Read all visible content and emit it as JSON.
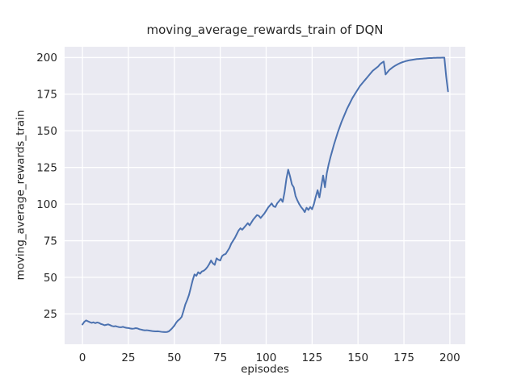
{
  "chart_data": {
    "type": "line",
    "title": "moving_average_rewards_train of DQN",
    "xlabel": "episodes",
    "ylabel": "moving_average_rewards_train",
    "x_ticks": [
      0,
      25,
      50,
      75,
      100,
      125,
      150,
      175,
      200
    ],
    "y_ticks": [
      25,
      50,
      75,
      100,
      125,
      150,
      175,
      200
    ],
    "xlim": [
      -9.7,
      208.4
    ],
    "ylim": [
      4.3,
      207.4
    ],
    "grid": true,
    "legend": false,
    "series": [
      {
        "name": "moving_average_rewards_train",
        "x_start": 0,
        "x_step": 1,
        "values": [
          17.8,
          19.6,
          20.6,
          20.0,
          19.4,
          18.9,
          19.3,
          18.7,
          19.2,
          18.9,
          18.2,
          17.8,
          17.3,
          17.6,
          17.9,
          17.4,
          16.8,
          16.5,
          16.7,
          16.3,
          16.0,
          15.9,
          16.2,
          15.8,
          15.5,
          15.4,
          15.1,
          14.9,
          15.0,
          15.3,
          15.1,
          14.6,
          14.3,
          14.0,
          13.8,
          13.9,
          13.7,
          13.5,
          13.3,
          13.2,
          13.1,
          13.2,
          13.0,
          12.8,
          12.7,
          12.6,
          12.7,
          13.1,
          14.2,
          15.5,
          17.0,
          19.0,
          20.5,
          21.5,
          23.0,
          27.0,
          31.5,
          34.5,
          38.0,
          43.0,
          48.0,
          52.0,
          51.0,
          53.5,
          52.5,
          54.0,
          54.5,
          55.5,
          57.0,
          59.0,
          61.5,
          59.5,
          58.5,
          63.0,
          62.0,
          61.5,
          64.5,
          65.5,
          66.0,
          68.0,
          70.0,
          73.0,
          75.0,
          77.0,
          79.5,
          82.0,
          83.5,
          82.5,
          84.0,
          85.5,
          87.0,
          85.5,
          87.5,
          89.5,
          91.0,
          92.5,
          92.0,
          90.5,
          92.0,
          93.5,
          95.5,
          97.5,
          99.0,
          100.5,
          98.5,
          98.0,
          100.5,
          102.0,
          103.5,
          101.5,
          108.0,
          117.0,
          123.5,
          119.0,
          113.5,
          111.5,
          105.5,
          102.5,
          100.0,
          98.0,
          96.5,
          94.5,
          97.5,
          96.0,
          98.0,
          96.5,
          100.0,
          105.0,
          109.5,
          104.5,
          112.0,
          119.5,
          111.5,
          121.0,
          127.0,
          132.0,
          136.5,
          141.0,
          145.0,
          149.0,
          152.5,
          156.0,
          159.0,
          162.0,
          165.0,
          167.5,
          170.0,
          172.5,
          174.5,
          176.5,
          178.5,
          180.5,
          182.0,
          183.5,
          185.0,
          186.5,
          188.0,
          189.5,
          191.0,
          192.0,
          193.0,
          194.0,
          195.5,
          196.5,
          197.3,
          188.5,
          190.0,
          191.5,
          192.5,
          193.5,
          194.3,
          195.0,
          195.7,
          196.3,
          196.8,
          197.2,
          197.6,
          197.9,
          198.2,
          198.4,
          198.6,
          198.8,
          199.0,
          199.1,
          199.2,
          199.3,
          199.4,
          199.5,
          199.6,
          199.7,
          199.7,
          199.8,
          199.8,
          199.9,
          199.9,
          199.9,
          200.0,
          200.0,
          187.0,
          177.0
        ]
      }
    ],
    "style": {
      "figure_bg": "#ffffff",
      "axes_bg": "#eaeaf2",
      "grid_color": "#ffffff",
      "line_color": "#4c72b0",
      "text_color": "#262626"
    }
  }
}
